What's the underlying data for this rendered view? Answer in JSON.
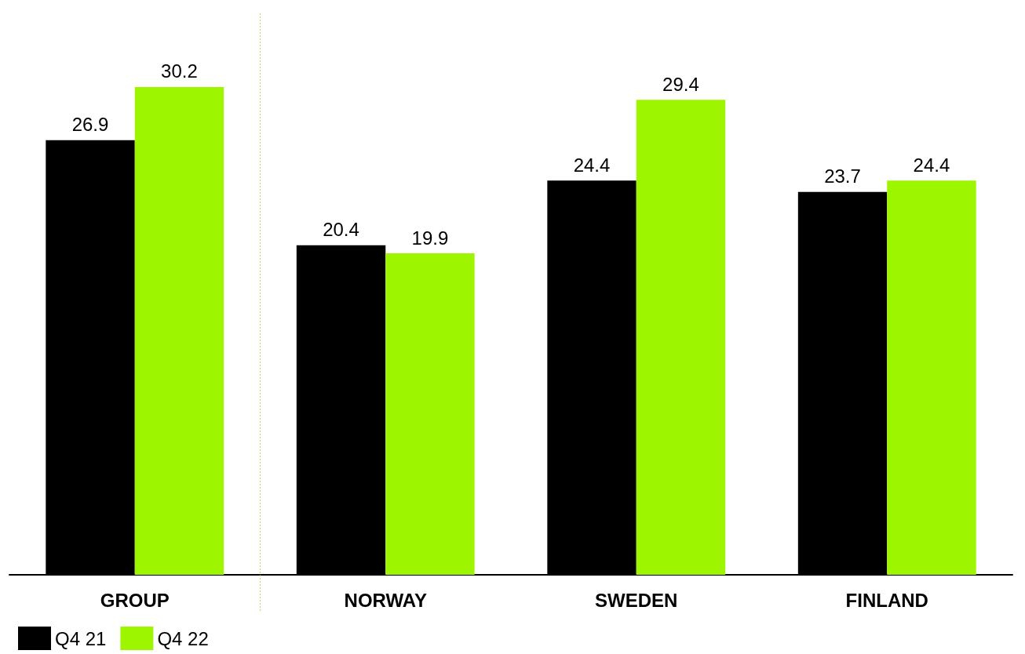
{
  "chart_data": {
    "type": "bar",
    "categories": [
      "GROUP",
      "NORWAY",
      "SWEDEN",
      "FINLAND"
    ],
    "series": [
      {
        "name": "Q4 21",
        "color": "#000000",
        "values": [
          26.9,
          20.4,
          24.4,
          23.7
        ]
      },
      {
        "name": "Q4 22",
        "color": "#9ef500",
        "values": [
          30.2,
          19.9,
          29.4,
          24.4
        ]
      }
    ],
    "data_labels": true,
    "legend": "bottom left"
  }
}
